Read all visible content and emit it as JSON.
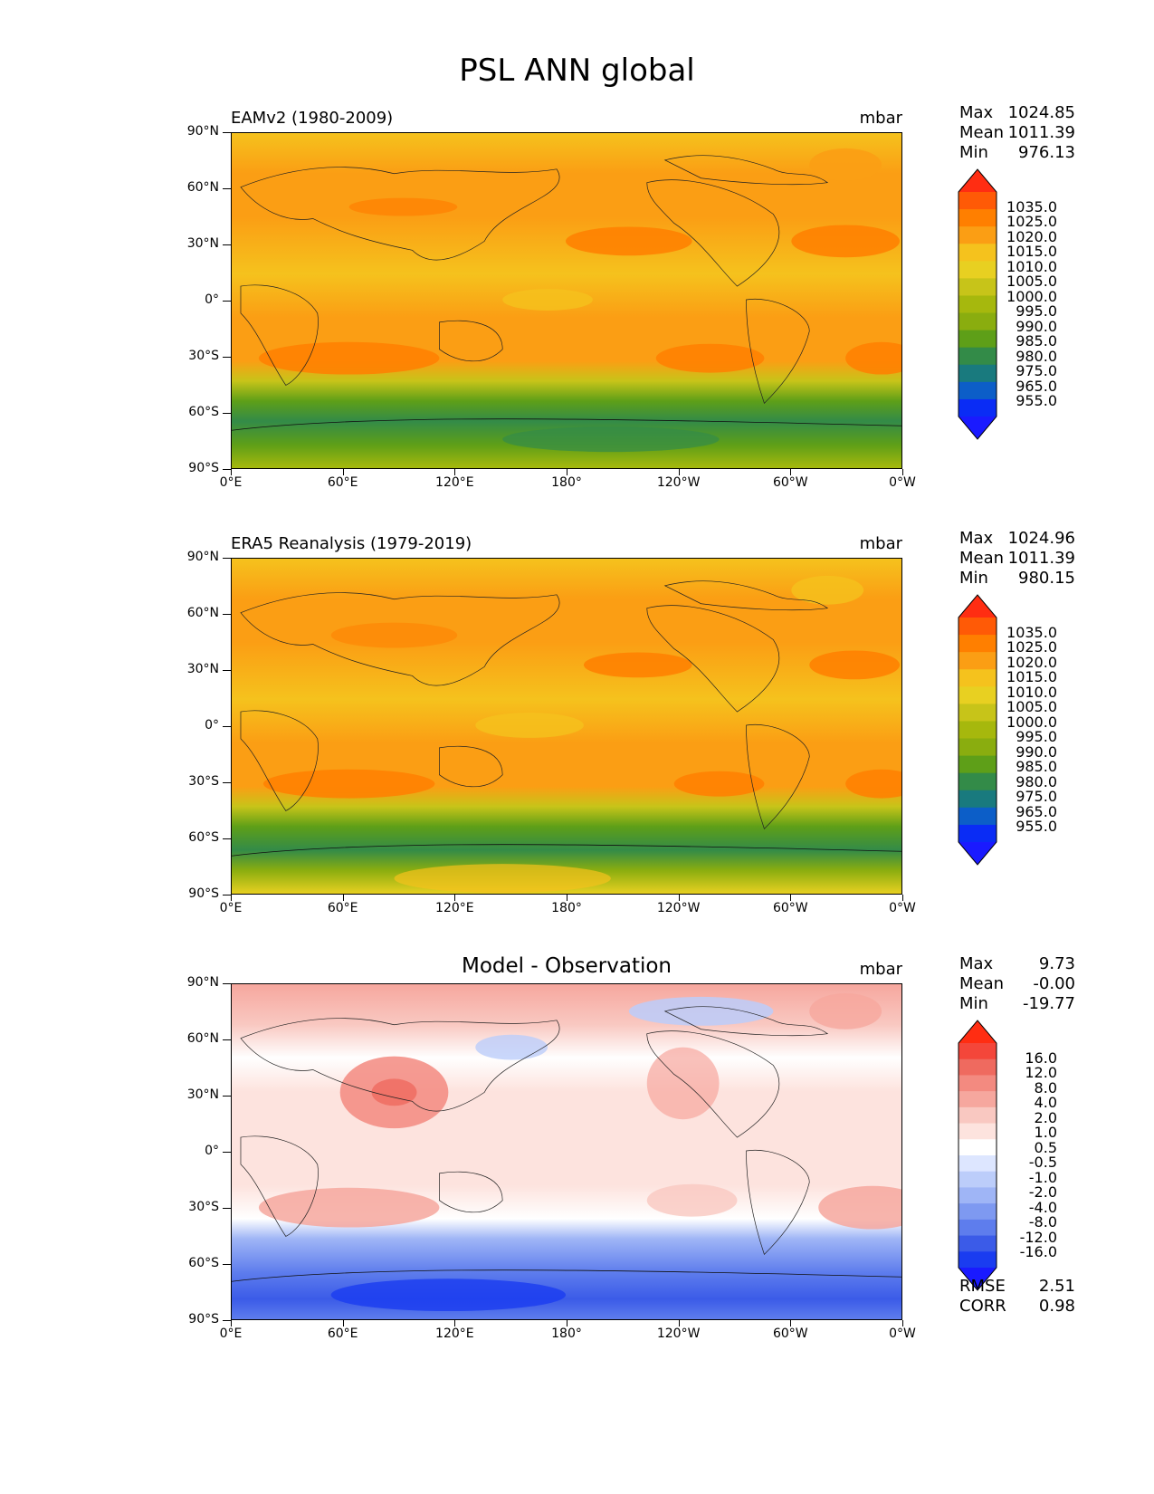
{
  "figure": {
    "title": "PSL ANN global"
  },
  "lat_labels": [
    "90°N",
    "60°N",
    "30°N",
    "0°",
    "30°S",
    "60°S",
    "90°S"
  ],
  "lon_labels": [
    "0°E",
    "60°E",
    "120°E",
    "180°",
    "120°W",
    "60°W",
    "0°W"
  ],
  "panels": [
    {
      "title": "EAMv2 (1980-2009)",
      "units": "mbar",
      "stats": {
        "max_label": "Max",
        "max": "1024.85",
        "mean_label": "Mean",
        "mean": "1011.39",
        "min_label": "Min",
        "min": "976.13"
      },
      "colorbar_levels": [
        "1035.0",
        "1025.0",
        "1020.0",
        "1015.0",
        "1010.0",
        "1005.0",
        "1000.0",
        "995.0",
        "990.0",
        "985.0",
        "980.0",
        "975.0",
        "965.0",
        "955.0"
      ]
    },
    {
      "title": "ERA5 Reanalysis (1979-2019)",
      "units": "mbar",
      "stats": {
        "max_label": "Max",
        "max": "1024.96",
        "mean_label": "Mean",
        "mean": "1011.39",
        "min_label": "Min",
        "min": "980.15"
      },
      "colorbar_levels": [
        "1035.0",
        "1025.0",
        "1020.0",
        "1015.0",
        "1010.0",
        "1005.0",
        "1000.0",
        "995.0",
        "990.0",
        "985.0",
        "980.0",
        "975.0",
        "965.0",
        "955.0"
      ]
    },
    {
      "title": "Model - Observation",
      "units": "mbar",
      "stats": {
        "max_label": "Max",
        "max": "9.73",
        "mean_label": "Mean",
        "mean": "-0.00",
        "min_label": "Min",
        "min": "-19.77"
      },
      "colorbar_levels": [
        "16.0",
        "12.0",
        "8.0",
        "4.0",
        "2.0",
        "1.0",
        "0.5",
        "-0.5",
        "-1.0",
        "-2.0",
        "-4.0",
        "-8.0",
        "-12.0",
        "-16.0"
      ],
      "metrics": {
        "rmse_label": "RMSE",
        "rmse": "2.51",
        "corr_label": "CORR",
        "corr": "0.98"
      }
    }
  ],
  "colors": {
    "abs_scale": [
      "#ff2d12",
      "#ff5a06",
      "#ff7f00",
      "#fb9e14",
      "#f5c21d",
      "#e8d021",
      "#c7c419",
      "#a6b80d",
      "#8aad0f",
      "#5e9f18",
      "#338b48",
      "#197a7e",
      "#0c5ec8",
      "#0a2cf5",
      "#1a1aff"
    ],
    "diff_scale": [
      "#ff2d12",
      "#f4463a",
      "#ef6a5f",
      "#f38a80",
      "#f6a79e",
      "#f9c8c1",
      "#fde3de",
      "#ffffff",
      "#dde6ff",
      "#bccdfa",
      "#9fb5f6",
      "#7e99f1",
      "#5e7ded",
      "#3b5be8",
      "#1a3cf0",
      "#1a1aff"
    ]
  }
}
